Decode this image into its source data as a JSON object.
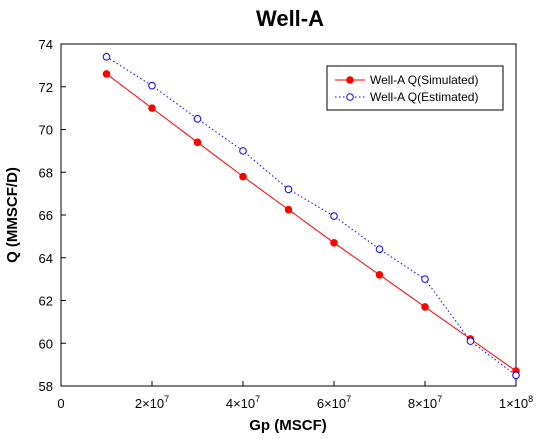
{
  "chart_data": {
    "type": "line",
    "title": "Well-A",
    "xlabel": "Gp (MSCF)",
    "ylabel": "Q (MMSCF/D)",
    "xlim": [
      0,
      100000000
    ],
    "ylim": [
      58,
      74
    ],
    "x_ticks": [
      {
        "value": 0,
        "label": "0"
      },
      {
        "value": 20000000,
        "mantissa": "2",
        "exp": "7"
      },
      {
        "value": 40000000,
        "mantissa": "4",
        "exp": "7"
      },
      {
        "value": 60000000,
        "mantissa": "6",
        "exp": "7"
      },
      {
        "value": 80000000,
        "mantissa": "8",
        "exp": "7"
      },
      {
        "value": 100000000,
        "mantissa": "1",
        "exp": "8"
      }
    ],
    "y_ticks": [
      58,
      60,
      62,
      64,
      66,
      68,
      70,
      72,
      74
    ],
    "x": [
      10000000,
      20000000,
      30000000,
      40000000,
      50000000,
      60000000,
      70000000,
      80000000,
      90000000,
      100000000
    ],
    "series": [
      {
        "name": "Well-A Q(Simulated)",
        "color": "#ff0000",
        "line_style": "solid",
        "marker": "filled-circle",
        "values": [
          72.6,
          71.0,
          69.4,
          67.8,
          66.25,
          64.7,
          63.2,
          61.7,
          60.2,
          58.7
        ]
      },
      {
        "name": "Well-A Q(Estimated)",
        "color": "#0000ff",
        "line_style": "dotted",
        "marker": "open-circle",
        "values": [
          73.4,
          72.05,
          70.5,
          69.0,
          67.2,
          65.95,
          64.4,
          63.0,
          60.1,
          58.5
        ]
      }
    ],
    "legend_position": "top-right",
    "grid": false
  }
}
